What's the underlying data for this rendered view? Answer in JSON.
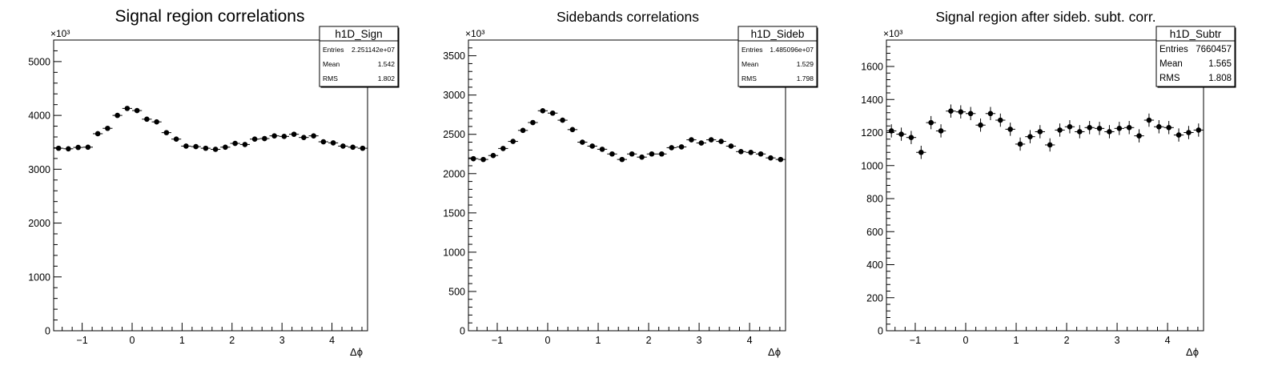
{
  "chart_data": [
    {
      "type": "scatter",
      "title": "Signal region correlations",
      "xlabel": "Δϕ",
      "ylabel": "",
      "y_multiplier": "×10³",
      "xlim": [
        -1.5708,
        4.7124
      ],
      "ylim": [
        0,
        5400
      ],
      "x_ticks": [
        -1,
        0,
        1,
        2,
        3,
        4
      ],
      "y_ticks": [
        0,
        1000,
        2000,
        3000,
        4000,
        5000
      ],
      "grid": false,
      "stats_box": {
        "name": "h1D_Sign",
        "rows": [
          {
            "label": "Entries",
            "value": "2.251142e+07"
          },
          {
            "label": "Mean",
            "value": "1.542"
          },
          {
            "label": "RMS",
            "value": "1.802"
          }
        ]
      },
      "series": [
        {
          "values": [
            3390,
            3380,
            3405,
            3410,
            3660,
            3760,
            4000,
            4130,
            4090,
            3930,
            3880,
            3680,
            3560,
            3430,
            3420,
            3390,
            3370,
            3410,
            3480,
            3460,
            3560,
            3570,
            3620,
            3610,
            3650,
            3590,
            3620,
            3510,
            3490,
            3430,
            3410,
            3390
          ],
          "y_err": [
            22,
            22,
            22,
            22,
            22,
            22,
            22,
            22,
            22,
            22,
            22,
            22,
            22,
            22,
            22,
            22,
            22,
            22,
            22,
            22,
            22,
            22,
            22,
            22,
            22,
            22,
            22,
            22,
            22,
            22,
            22,
            22
          ]
        }
      ]
    },
    {
      "type": "scatter",
      "title": "Sidebands correlations",
      "xlabel": "Δϕ",
      "ylabel": "",
      "y_multiplier": "×10³",
      "xlim": [
        -1.5708,
        4.7124
      ],
      "ylim": [
        0,
        3700
      ],
      "x_ticks": [
        -1,
        0,
        1,
        2,
        3,
        4
      ],
      "y_ticks": [
        0,
        500,
        1000,
        1500,
        2000,
        2500,
        3000,
        3500
      ],
      "grid": false,
      "stats_box": {
        "name": "h1D_Sideb",
        "rows": [
          {
            "label": "Entries",
            "value": "1.485096e+07"
          },
          {
            "label": "Mean",
            "value": "1.529"
          },
          {
            "label": "RMS",
            "value": "1.798"
          }
        ]
      },
      "series": [
        {
          "values": [
            2190,
            2180,
            2230,
            2320,
            2410,
            2550,
            2650,
            2800,
            2770,
            2680,
            2560,
            2400,
            2350,
            2310,
            2250,
            2180,
            2250,
            2210,
            2250,
            2250,
            2330,
            2340,
            2430,
            2390,
            2430,
            2410,
            2350,
            2280,
            2270,
            2250,
            2200,
            2180
          ],
          "y_err": [
            18,
            18,
            18,
            18,
            18,
            18,
            18,
            18,
            18,
            18,
            18,
            18,
            18,
            18,
            18,
            18,
            18,
            18,
            18,
            18,
            18,
            18,
            18,
            18,
            18,
            18,
            18,
            18,
            18,
            18,
            18,
            18
          ]
        }
      ]
    },
    {
      "type": "scatter",
      "title": "Signal region after sideb. subt. corr.",
      "xlabel": "Δϕ",
      "ylabel": "",
      "y_multiplier": "×10³",
      "xlim": [
        -1.5708,
        4.7124
      ],
      "ylim": [
        0,
        1760
      ],
      "x_ticks": [
        -1,
        0,
        1,
        2,
        3,
        4
      ],
      "y_ticks": [
        0,
        200,
        400,
        600,
        800,
        1000,
        1200,
        1400,
        1600
      ],
      "grid": false,
      "stats_box": {
        "name": "h1D_Subtr",
        "rows": [
          {
            "label": "Entries",
            "value": "7660457"
          },
          {
            "label": "Mean",
            "value": "1.565"
          },
          {
            "label": "RMS",
            "value": "1.808"
          }
        ]
      },
      "series": [
        {
          "values": [
            1210,
            1190,
            1170,
            1080,
            1260,
            1210,
            1330,
            1325,
            1315,
            1245,
            1315,
            1275,
            1220,
            1130,
            1175,
            1205,
            1125,
            1215,
            1235,
            1205,
            1230,
            1225,
            1205,
            1225,
            1230,
            1180,
            1275,
            1235,
            1230,
            1185,
            1200,
            1215
          ],
          "y_err": [
            40,
            40,
            40,
            40,
            40,
            40,
            40,
            40,
            40,
            40,
            40,
            40,
            40,
            40,
            40,
            40,
            40,
            40,
            40,
            40,
            40,
            40,
            40,
            40,
            40,
            40,
            40,
            40,
            40,
            40,
            40,
            40
          ]
        }
      ]
    }
  ]
}
